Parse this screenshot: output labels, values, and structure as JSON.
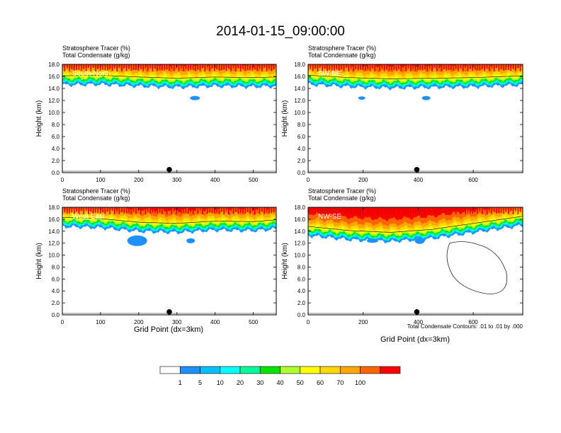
{
  "title": "2014-01-15_09:00:00",
  "panel_header": {
    "line1": "Stratosphere Tracer   (%)",
    "line2": "Total Condensate   (g/kg)"
  },
  "ylabel": "Height (km)",
  "xlabel": "Grid Point (dx=3km)",
  "contour_note": "Total Condensate Contours: .01 to .01 by .000",
  "colorbar": {
    "colors": [
      "#ffffff",
      "#1e90ff",
      "#00bfff",
      "#00ffff",
      "#00fa9a",
      "#00e400",
      "#adff2f",
      "#ffff00",
      "#ffd700",
      "#ffa500",
      "#ff6400",
      "#ff0000"
    ],
    "labels": [
      "1",
      "5",
      "10",
      "20",
      "30",
      "40",
      "50",
      "60",
      "70",
      "100"
    ]
  },
  "chart_data": [
    {
      "type": "heatmap",
      "label": "South-North",
      "xlim": [
        0,
        560
      ],
      "ylim": [
        0,
        18
      ],
      "xticks": [
        "0",
        "100",
        "200",
        "300",
        "400",
        "500"
      ],
      "xtick_values": [
        0,
        100,
        200,
        300,
        400,
        500
      ],
      "yticks": [
        "0.0",
        "2.0",
        "4.0",
        "6.0",
        "8.0",
        "10.0",
        "12.0",
        "14.0",
        "16.0",
        "18.0"
      ],
      "tropopause_km": [
        [
          0,
          14.8
        ],
        [
          100,
          14.9
        ],
        [
          200,
          14.6
        ],
        [
          300,
          14.4
        ],
        [
          400,
          14.6
        ],
        [
          500,
          14.5
        ],
        [
          560,
          14.6
        ]
      ],
      "marker_x": 280
    },
    {
      "type": "heatmap",
      "label": "SW-NE",
      "xlim": [
        0,
        780
      ],
      "ylim": [
        0,
        18
      ],
      "xticks": [
        "0",
        "200",
        "400",
        "600"
      ],
      "xtick_values": [
        0,
        200,
        400,
        600
      ],
      "yticks": [
        "0.0",
        "2.0",
        "4.0",
        "6.0",
        "8.0",
        "10.0",
        "12.0",
        "14.0",
        "16.0",
        "18.0"
      ],
      "tropopause_km": [
        [
          0,
          14.9
        ],
        [
          150,
          14.5
        ],
        [
          300,
          14.3
        ],
        [
          450,
          14.4
        ],
        [
          600,
          14.5
        ],
        [
          780,
          14.8
        ]
      ],
      "marker_x": 395
    },
    {
      "type": "heatmap",
      "label": "West-East",
      "xlim": [
        0,
        560
      ],
      "ylim": [
        0,
        18
      ],
      "xticks": [
        "0",
        "100",
        "200",
        "300",
        "400",
        "500"
      ],
      "xtick_values": [
        0,
        100,
        200,
        300,
        400,
        500
      ],
      "yticks": [
        "0.0",
        "2.0",
        "4.0",
        "6.0",
        "8.0",
        "10.0",
        "12.0",
        "14.0",
        "16.0",
        "18.0"
      ],
      "tropopause_km": [
        [
          0,
          15.0
        ],
        [
          100,
          14.8
        ],
        [
          200,
          14.2
        ],
        [
          300,
          14.0
        ],
        [
          400,
          14.4
        ],
        [
          500,
          14.3
        ],
        [
          560,
          14.6
        ]
      ],
      "marker_x": 280
    },
    {
      "type": "heatmap",
      "label": "NW-SE",
      "xlim": [
        0,
        780
      ],
      "ylim": [
        0,
        18
      ],
      "xticks": [
        "0",
        "200",
        "400",
        "600"
      ],
      "xtick_values": [
        0,
        200,
        400,
        600
      ],
      "yticks": [
        "0.0",
        "2.0",
        "4.0",
        "6.0",
        "8.0",
        "10.0",
        "12.0",
        "14.0",
        "16.0",
        "18.0"
      ],
      "tropopause_km": [
        [
          0,
          13.5
        ],
        [
          150,
          12.8
        ],
        [
          300,
          12.5
        ],
        [
          450,
          13.0
        ],
        [
          600,
          14.0
        ],
        [
          780,
          15.2
        ]
      ],
      "marker_x": 395
    }
  ]
}
